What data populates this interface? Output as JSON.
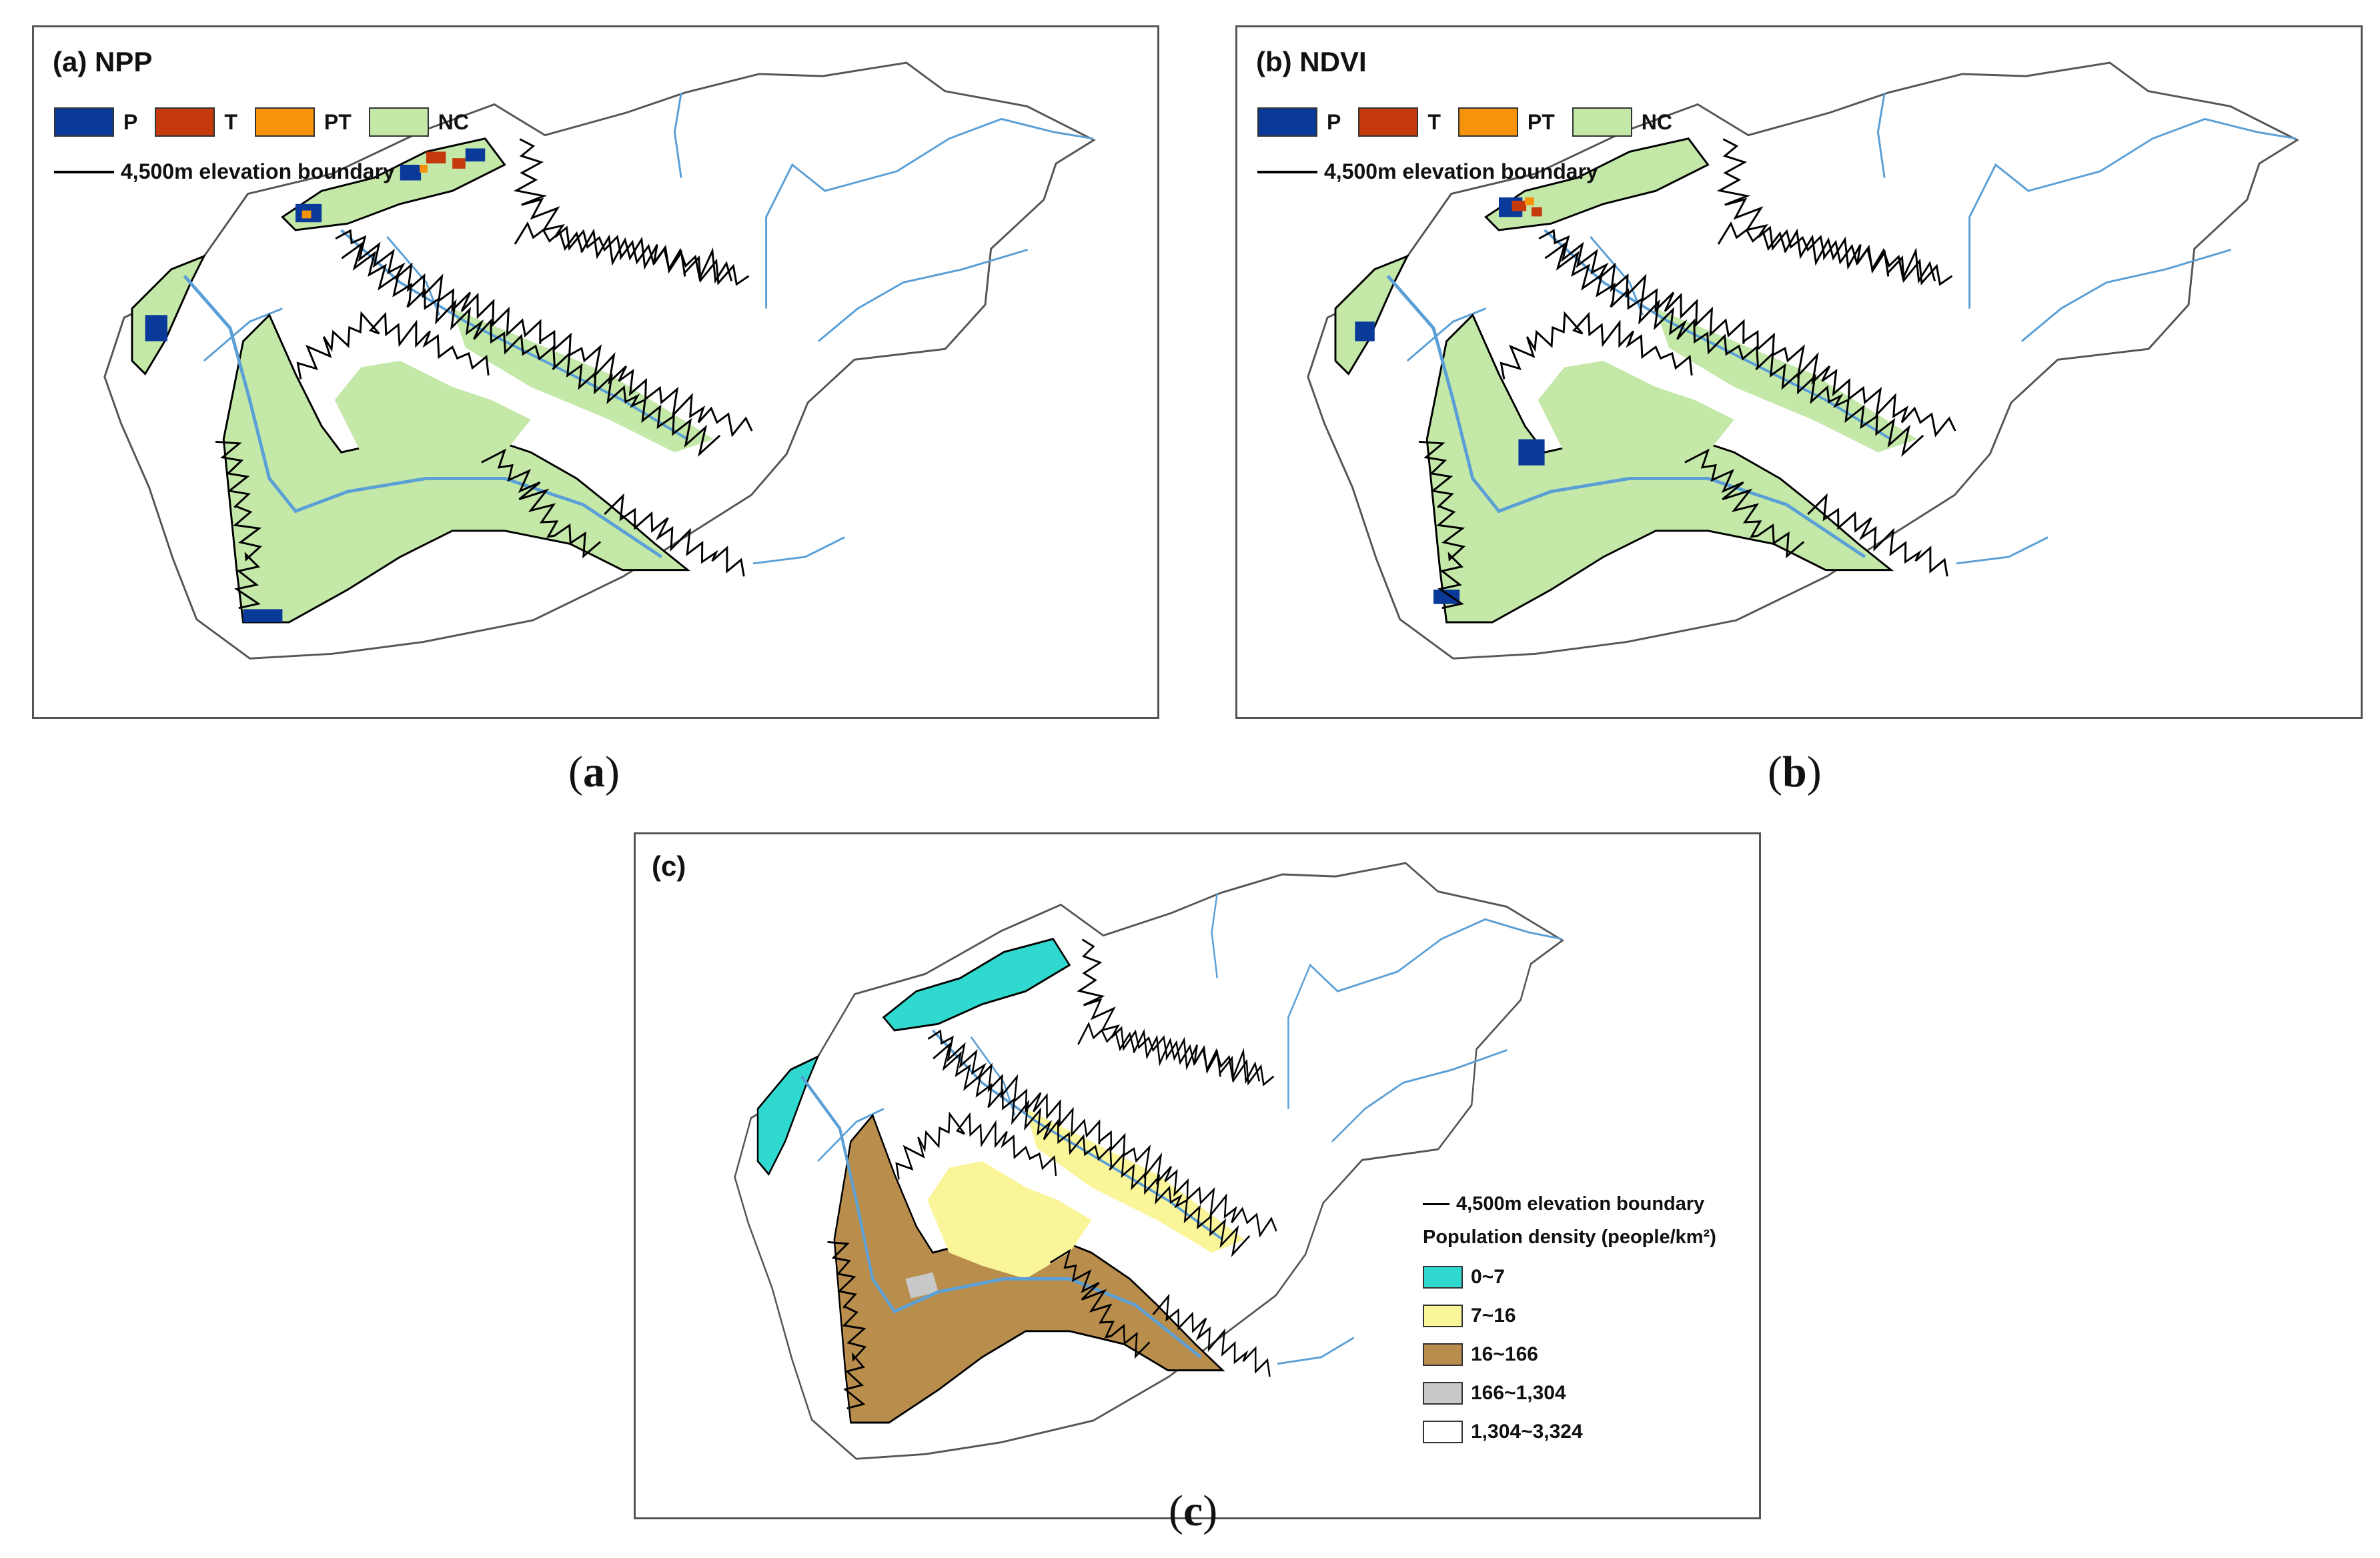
{
  "panels": {
    "a": {
      "title": "(a)  NPP",
      "legend": [
        {
          "code": "P",
          "color": "#0a3a99"
        },
        {
          "code": "T",
          "color": "#c43a0c"
        },
        {
          "code": "PT",
          "color": "#f7930a"
        },
        {
          "code": "NC",
          "color": "#c4e8a8"
        }
      ],
      "boundary_label": "4,500m elevation boundary",
      "caption": "a"
    },
    "b": {
      "title": "(b) NDVI",
      "legend": [
        {
          "code": "P",
          "color": "#0a3a99"
        },
        {
          "code": "T",
          "color": "#c43a0c"
        },
        {
          "code": "PT",
          "color": "#f7930a"
        },
        {
          "code": "NC",
          "color": "#c4e8a8"
        }
      ],
      "boundary_label": "4,500m elevation boundary",
      "caption": "b"
    },
    "c": {
      "title": "(c)",
      "boundary_label": "4,500m elevation boundary",
      "pop_title": "Population density (people/km²)",
      "pop_classes": [
        {
          "label": "0~7",
          "color": "#2fd9cf"
        },
        {
          "label": "7~16",
          "color": "#fbf59a"
        },
        {
          "label": "16~166",
          "color": "#b98e4d"
        },
        {
          "label": "166~1,304",
          "color": "#c8c8c8"
        },
        {
          "label": "1,304~3,324",
          "color": "#ffffff"
        }
      ],
      "caption": "c"
    }
  },
  "colors": {
    "river": "#5a9fd6",
    "basin_outline": "#555555",
    "elevation_boundary": "#000000"
  }
}
